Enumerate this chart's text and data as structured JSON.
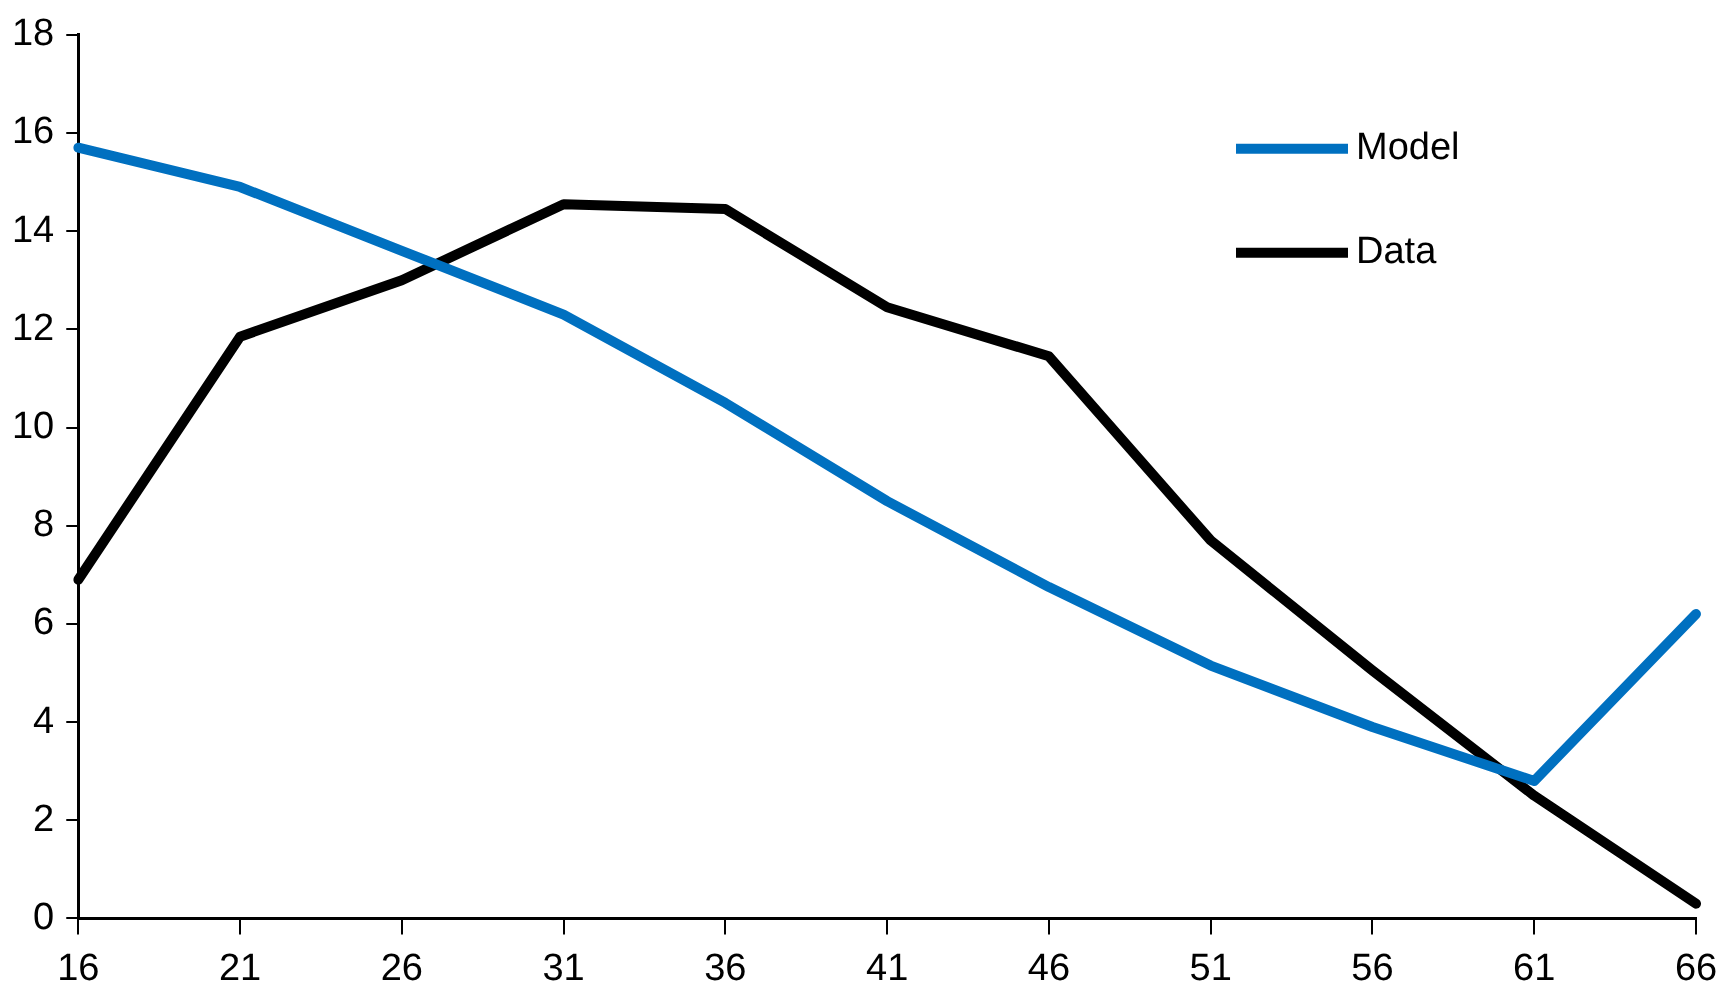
{
  "chart_data": {
    "type": "line",
    "categories": [
      "16",
      "21",
      "26",
      "31",
      "36",
      "41",
      "46",
      "51",
      "56",
      "61",
      "66"
    ],
    "series": [
      {
        "name": "Model",
        "color": "#0070c0",
        "values": [
          15.7,
          14.9,
          13.6,
          12.3,
          10.5,
          8.5,
          6.75,
          5.15,
          3.9,
          2.8,
          6.2
        ]
      },
      {
        "name": "Data",
        "color": "#000000",
        "values": [
          6.9,
          11.85,
          13.0,
          14.55,
          14.45,
          12.45,
          11.45,
          7.7,
          5.05,
          2.5,
          0.3
        ]
      }
    ],
    "ylim": [
      0,
      18
    ],
    "yticks": [
      0,
      2,
      4,
      6,
      8,
      10,
      12,
      14,
      16,
      18
    ],
    "grid": false,
    "legend": "top right",
    "marker": "none",
    "line_style": "solid"
  }
}
